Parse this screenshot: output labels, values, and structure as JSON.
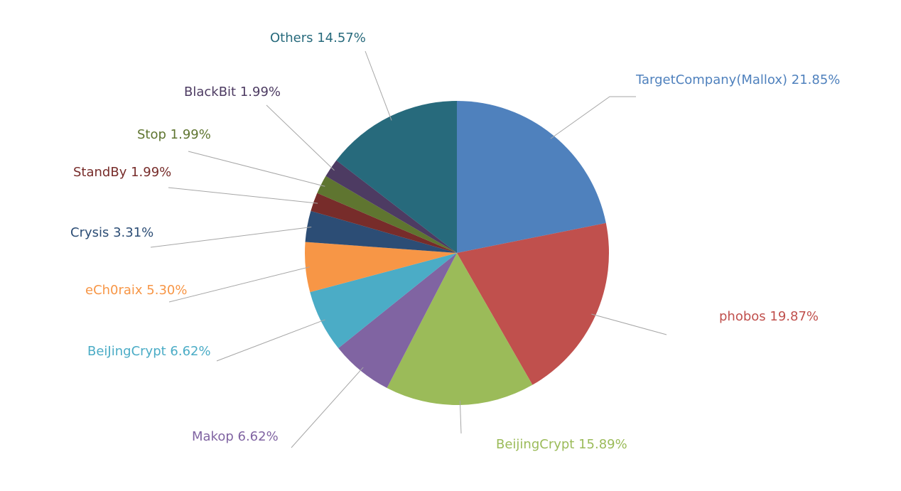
{
  "chart_data": {
    "type": "pie",
    "title": "",
    "series": [
      {
        "slices": [
          {
            "label": "TargetCompany(Mallox)",
            "value": 21.85,
            "text": "TargetCompany(Mallox) 21.85%",
            "color": "#4F81BD"
          },
          {
            "label": "phobos",
            "value": 19.87,
            "text": "phobos 19.87%",
            "color": "#C0504D"
          },
          {
            "label": "BeijingCrypt",
            "value": 15.89,
            "text": "BeijingCrypt 15.89%",
            "color": "#9BBB59"
          },
          {
            "label": "Makop",
            "value": 6.62,
            "text": "Makop 6.62%",
            "color": "#8064A2"
          },
          {
            "label": "BeiJingCrypt",
            "value": 6.62,
            "text": "BeiJingCrypt 6.62%",
            "color": "#4BACC6"
          },
          {
            "label": "eCh0raix",
            "value": 5.3,
            "text": "eCh0raix 5.30%",
            "color": "#F79646"
          },
          {
            "label": "Crysis",
            "value": 3.31,
            "text": "Crysis 3.31%",
            "color": "#2C4D75"
          },
          {
            "label": "StandBy",
            "value": 1.99,
            "text": "StandBy 1.99%",
            "color": "#772C2A"
          },
          {
            "label": "Stop",
            "value": 1.99,
            "text": "Stop 1.99%",
            "color": "#5F7530"
          },
          {
            "label": "BlackBit",
            "value": 1.99,
            "text": "BlackBit 1.99%",
            "color": "#4D3B62"
          },
          {
            "label": "Others",
            "value": 14.57,
            "text": "Others 14.57%",
            "color": "#276A7C"
          }
        ]
      }
    ],
    "legend": "none",
    "data_labels": "outside with leader lines",
    "start_angle": "12 o'clock, clockwise"
  }
}
